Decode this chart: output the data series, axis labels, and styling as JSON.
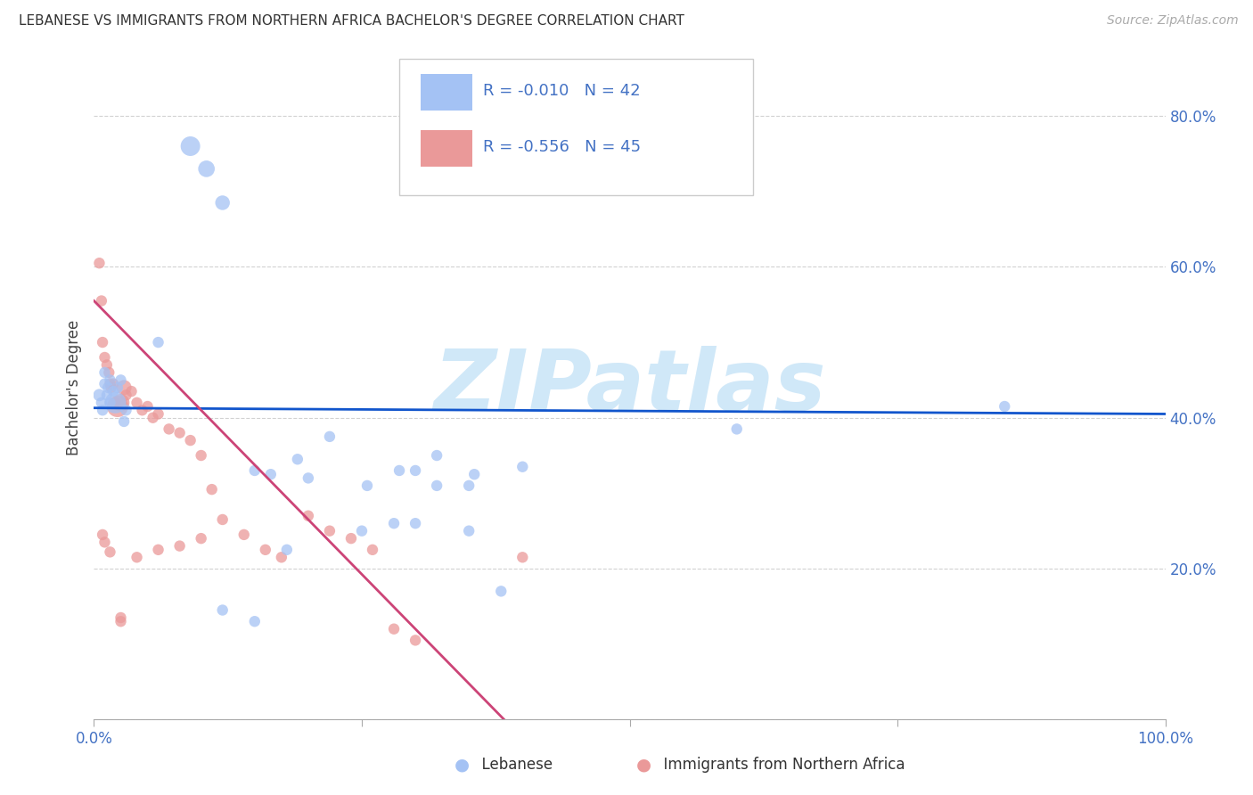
{
  "title": "LEBANESE VS IMMIGRANTS FROM NORTHERN AFRICA BACHELOR'S DEGREE CORRELATION CHART",
  "source": "Source: ZipAtlas.com",
  "ylabel": "Bachelor's Degree",
  "color_blue": "#a4c2f4",
  "color_pink": "#ea9999",
  "color_line_blue": "#1155cc",
  "color_line_pink": "#cc4477",
  "color_axis_labels": "#4472c4",
  "color_grid": "#c0c0c0",
  "color_legend_text": "#4472c4",
  "watermark": "ZIPatlas",
  "watermark_color": "#d0e8f8",
  "legend_1_label": "Lebanese",
  "legend_2_label": "Immigrants from Northern Africa",
  "legend_r1": "R = -0.010",
  "legend_n1": "N = 42",
  "legend_r2": "R = -0.556",
  "legend_n2": "N = 45",
  "blue_x": [
    0.005,
    0.007,
    0.008,
    0.01,
    0.01,
    0.012,
    0.013,
    0.015,
    0.015,
    0.018,
    0.02,
    0.022,
    0.025,
    0.028,
    0.03,
    0.06,
    0.09,
    0.105,
    0.12,
    0.15,
    0.165,
    0.19,
    0.22,
    0.255,
    0.3,
    0.32,
    0.35,
    0.355,
    0.25,
    0.28,
    0.285,
    0.3,
    0.38,
    0.4,
    0.35,
    0.2,
    0.18,
    0.15,
    0.12,
    0.85,
    0.6,
    0.32
  ],
  "blue_y": [
    0.43,
    0.42,
    0.41,
    0.445,
    0.46,
    0.43,
    0.44,
    0.45,
    0.42,
    0.435,
    0.42,
    0.44,
    0.45,
    0.395,
    0.41,
    0.5,
    0.76,
    0.73,
    0.685,
    0.33,
    0.325,
    0.345,
    0.375,
    0.31,
    0.33,
    0.31,
    0.31,
    0.325,
    0.25,
    0.26,
    0.33,
    0.26,
    0.17,
    0.335,
    0.25,
    0.32,
    0.225,
    0.13,
    0.145,
    0.415,
    0.385,
    0.35
  ],
  "blue_size": [
    100,
    80,
    80,
    80,
    80,
    80,
    80,
    80,
    80,
    80,
    300,
    80,
    80,
    80,
    80,
    80,
    250,
    180,
    140,
    80,
    80,
    80,
    80,
    80,
    80,
    80,
    80,
    80,
    80,
    80,
    80,
    80,
    80,
    80,
    80,
    80,
    80,
    80,
    80,
    80,
    80,
    80
  ],
  "pink_x": [
    0.005,
    0.007,
    0.008,
    0.01,
    0.012,
    0.014,
    0.015,
    0.016,
    0.018,
    0.02,
    0.022,
    0.025,
    0.028,
    0.03,
    0.035,
    0.04,
    0.045,
    0.05,
    0.055,
    0.06,
    0.07,
    0.08,
    0.09,
    0.1,
    0.11,
    0.12,
    0.14,
    0.16,
    0.175,
    0.2,
    0.22,
    0.24,
    0.26,
    0.28,
    0.3,
    0.1,
    0.08,
    0.06,
    0.04,
    0.025,
    0.015,
    0.01,
    0.4,
    0.025,
    0.008
  ],
  "pink_y": [
    0.605,
    0.555,
    0.5,
    0.48,
    0.47,
    0.46,
    0.445,
    0.44,
    0.445,
    0.42,
    0.415,
    0.42,
    0.44,
    0.43,
    0.435,
    0.42,
    0.41,
    0.415,
    0.4,
    0.405,
    0.385,
    0.38,
    0.37,
    0.35,
    0.305,
    0.265,
    0.245,
    0.225,
    0.215,
    0.27,
    0.25,
    0.24,
    0.225,
    0.12,
    0.105,
    0.24,
    0.23,
    0.225,
    0.215,
    0.13,
    0.222,
    0.235,
    0.215,
    0.135,
    0.245
  ],
  "pink_size": [
    80,
    80,
    80,
    80,
    80,
    80,
    80,
    80,
    80,
    80,
    300,
    200,
    150,
    80,
    80,
    80,
    80,
    80,
    80,
    80,
    80,
    80,
    80,
    80,
    80,
    80,
    80,
    80,
    80,
    80,
    80,
    80,
    80,
    80,
    80,
    80,
    80,
    80,
    80,
    80,
    80,
    80,
    80,
    80,
    80
  ],
  "blue_intercept": 0.413,
  "blue_slope": -0.008,
  "pink_intercept": 0.555,
  "pink_slope": -1.45,
  "xlim": [
    0.0,
    1.0
  ],
  "ylim": [
    0.0,
    0.88
  ],
  "yticks": [
    0.0,
    0.2,
    0.4,
    0.6,
    0.8
  ],
  "ytick_labels_right": [
    "",
    "20.0%",
    "40.0%",
    "60.0%",
    "80.0%"
  ]
}
